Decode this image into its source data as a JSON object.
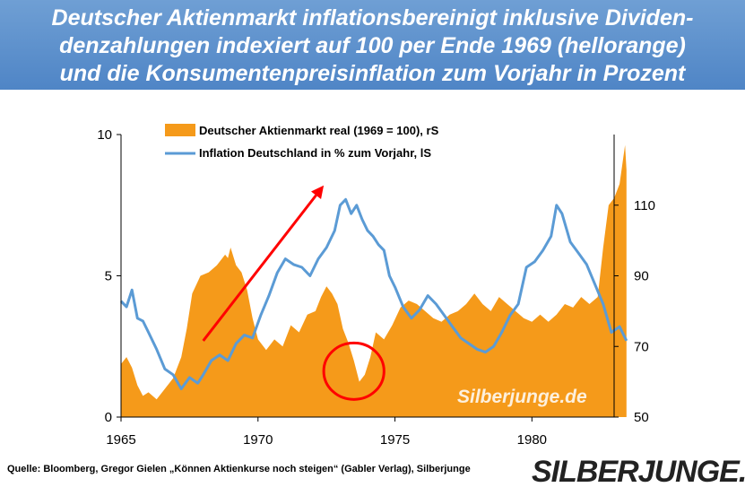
{
  "title": {
    "line1": "Deutscher Aktienmarkt inflationsbereinigt  inklusive Dividen-",
    "line2": "denzahlungen indexiert auf 100 per Ende 1969 (hellorange)",
    "line3": "und die Konsumentenpreisinflation zum Vorjahr in Prozent"
  },
  "source": "Quelle: Bloomberg, Gregor Gielen „Können Aktienkurse  noch steigen“ (Gabler Verlag), Silberjunge",
  "logo": "SILBERJUNGE.",
  "chart_data": {
    "type": "area",
    "title": "",
    "x_range": [
      1965,
      1983
    ],
    "x_ticks": [
      "1965",
      "1970",
      "1975",
      "1980"
    ],
    "left_axis": {
      "range": [
        0,
        10
      ],
      "ticks": [
        "0",
        "5",
        "10"
      ]
    },
    "right_axis": {
      "range": [
        50,
        130
      ],
      "ticks": [
        "50",
        "70",
        "90",
        "110"
      ]
    },
    "grid": false,
    "legend_position": "top",
    "colors": {
      "stock": "#f59a1a",
      "inflation": "#5b9bd5",
      "arrow": "#ff0000"
    },
    "series": [
      {
        "name": "Deutscher Aktienmarkt real (1969 = 100), rS",
        "axis": "right",
        "style": "area",
        "points": [
          [
            1965.0,
            65
          ],
          [
            1965.2,
            67
          ],
          [
            1965.4,
            64
          ],
          [
            1965.6,
            59
          ],
          [
            1965.8,
            56
          ],
          [
            1966.0,
            57
          ],
          [
            1966.3,
            55
          ],
          [
            1966.6,
            58
          ],
          [
            1966.9,
            61
          ],
          [
            1967.2,
            67
          ],
          [
            1967.4,
            75
          ],
          [
            1967.6,
            85
          ],
          [
            1967.9,
            90
          ],
          [
            1968.2,
            91
          ],
          [
            1968.5,
            93
          ],
          [
            1968.8,
            96
          ],
          [
            1968.9,
            95
          ],
          [
            1969.0,
            98
          ],
          [
            1969.2,
            93
          ],
          [
            1969.4,
            91
          ],
          [
            1969.6,
            86
          ],
          [
            1969.8,
            78
          ],
          [
            1970.0,
            72
          ],
          [
            1970.3,
            69
          ],
          [
            1970.6,
            72
          ],
          [
            1970.9,
            70
          ],
          [
            1971.2,
            76
          ],
          [
            1971.5,
            74
          ],
          [
            1971.8,
            79
          ],
          [
            1972.1,
            80
          ],
          [
            1972.3,
            84
          ],
          [
            1972.5,
            87
          ],
          [
            1972.7,
            85
          ],
          [
            1972.9,
            82
          ],
          [
            1973.1,
            75
          ],
          [
            1973.3,
            71
          ],
          [
            1973.5,
            66
          ],
          [
            1973.7,
            60
          ],
          [
            1973.9,
            62
          ],
          [
            1974.1,
            67
          ],
          [
            1974.3,
            74
          ],
          [
            1974.6,
            72
          ],
          [
            1974.9,
            76
          ],
          [
            1975.2,
            81
          ],
          [
            1975.5,
            83
          ],
          [
            1975.8,
            82
          ],
          [
            1976.1,
            80
          ],
          [
            1976.4,
            78
          ],
          [
            1976.7,
            77
          ],
          [
            1977.0,
            79
          ],
          [
            1977.3,
            80
          ],
          [
            1977.6,
            82
          ],
          [
            1977.9,
            85
          ],
          [
            1978.2,
            82
          ],
          [
            1978.5,
            80
          ],
          [
            1978.8,
            84
          ],
          [
            1979.1,
            82
          ],
          [
            1979.4,
            80
          ],
          [
            1979.7,
            78
          ],
          [
            1980.0,
            77
          ],
          [
            1980.3,
            79
          ],
          [
            1980.6,
            77
          ],
          [
            1980.9,
            79
          ],
          [
            1981.2,
            82
          ],
          [
            1981.5,
            81
          ],
          [
            1981.8,
            84
          ],
          [
            1982.1,
            82
          ],
          [
            1982.4,
            84
          ],
          [
            1982.6,
            98
          ],
          [
            1982.8,
            110
          ],
          [
            1983.0,
            112
          ],
          [
            1983.2,
            116
          ],
          [
            1983.4,
            127
          ],
          [
            1983.45,
            120
          ]
        ]
      },
      {
        "name": "Inflation Deutschland  in % zum Vorjahr, lS",
        "axis": "left",
        "style": "line",
        "points": [
          [
            1965.0,
            4.1
          ],
          [
            1965.2,
            3.9
          ],
          [
            1965.4,
            4.5
          ],
          [
            1965.6,
            3.5
          ],
          [
            1965.8,
            3.4
          ],
          [
            1966.0,
            3.0
          ],
          [
            1966.3,
            2.4
          ],
          [
            1966.6,
            1.7
          ],
          [
            1966.9,
            1.5
          ],
          [
            1967.2,
            1.0
          ],
          [
            1967.5,
            1.4
          ],
          [
            1967.8,
            1.2
          ],
          [
            1968.0,
            1.5
          ],
          [
            1968.3,
            2.0
          ],
          [
            1968.6,
            2.2
          ],
          [
            1968.9,
            2.0
          ],
          [
            1969.2,
            2.6
          ],
          [
            1969.5,
            2.9
          ],
          [
            1969.8,
            2.8
          ],
          [
            1970.1,
            3.6
          ],
          [
            1970.4,
            4.3
          ],
          [
            1970.7,
            5.1
          ],
          [
            1971.0,
            5.6
          ],
          [
            1971.3,
            5.4
          ],
          [
            1971.6,
            5.3
          ],
          [
            1971.9,
            5.0
          ],
          [
            1972.2,
            5.6
          ],
          [
            1972.5,
            6.0
          ],
          [
            1972.8,
            6.6
          ],
          [
            1973.0,
            7.5
          ],
          [
            1973.2,
            7.7
          ],
          [
            1973.4,
            7.2
          ],
          [
            1973.6,
            7.5
          ],
          [
            1973.8,
            7.0
          ],
          [
            1974.0,
            6.6
          ],
          [
            1974.2,
            6.4
          ],
          [
            1974.4,
            6.1
          ],
          [
            1974.6,
            5.9
          ],
          [
            1974.8,
            5.0
          ],
          [
            1975.0,
            4.6
          ],
          [
            1975.3,
            3.9
          ],
          [
            1975.6,
            3.5
          ],
          [
            1975.9,
            3.8
          ],
          [
            1976.2,
            4.3
          ],
          [
            1976.5,
            4.0
          ],
          [
            1976.8,
            3.6
          ],
          [
            1977.1,
            3.2
          ],
          [
            1977.4,
            2.8
          ],
          [
            1977.7,
            2.6
          ],
          [
            1978.0,
            2.4
          ],
          [
            1978.3,
            2.3
          ],
          [
            1978.6,
            2.5
          ],
          [
            1978.9,
            3.0
          ],
          [
            1979.2,
            3.6
          ],
          [
            1979.5,
            4.0
          ],
          [
            1979.8,
            5.3
          ],
          [
            1980.1,
            5.5
          ],
          [
            1980.4,
            5.9
          ],
          [
            1980.7,
            6.4
          ],
          [
            1980.9,
            7.5
          ],
          [
            1981.1,
            7.2
          ],
          [
            1981.4,
            6.2
          ],
          [
            1981.7,
            5.8
          ],
          [
            1982.0,
            5.4
          ],
          [
            1982.3,
            4.7
          ],
          [
            1982.6,
            4.0
          ],
          [
            1982.9,
            3.0
          ],
          [
            1983.2,
            3.2
          ],
          [
            1983.45,
            2.7
          ]
        ]
      }
    ],
    "annotations": {
      "arrow": {
        "from": [
          1968.0,
          2.7
        ],
        "to": [
          1972.4,
          8.2
        ]
      },
      "circle": {
        "center": [
          1973.5,
          63
        ],
        "rx_years": 1.1,
        "ry_value": 8
      },
      "watermark": "Silberjunge.de"
    }
  }
}
